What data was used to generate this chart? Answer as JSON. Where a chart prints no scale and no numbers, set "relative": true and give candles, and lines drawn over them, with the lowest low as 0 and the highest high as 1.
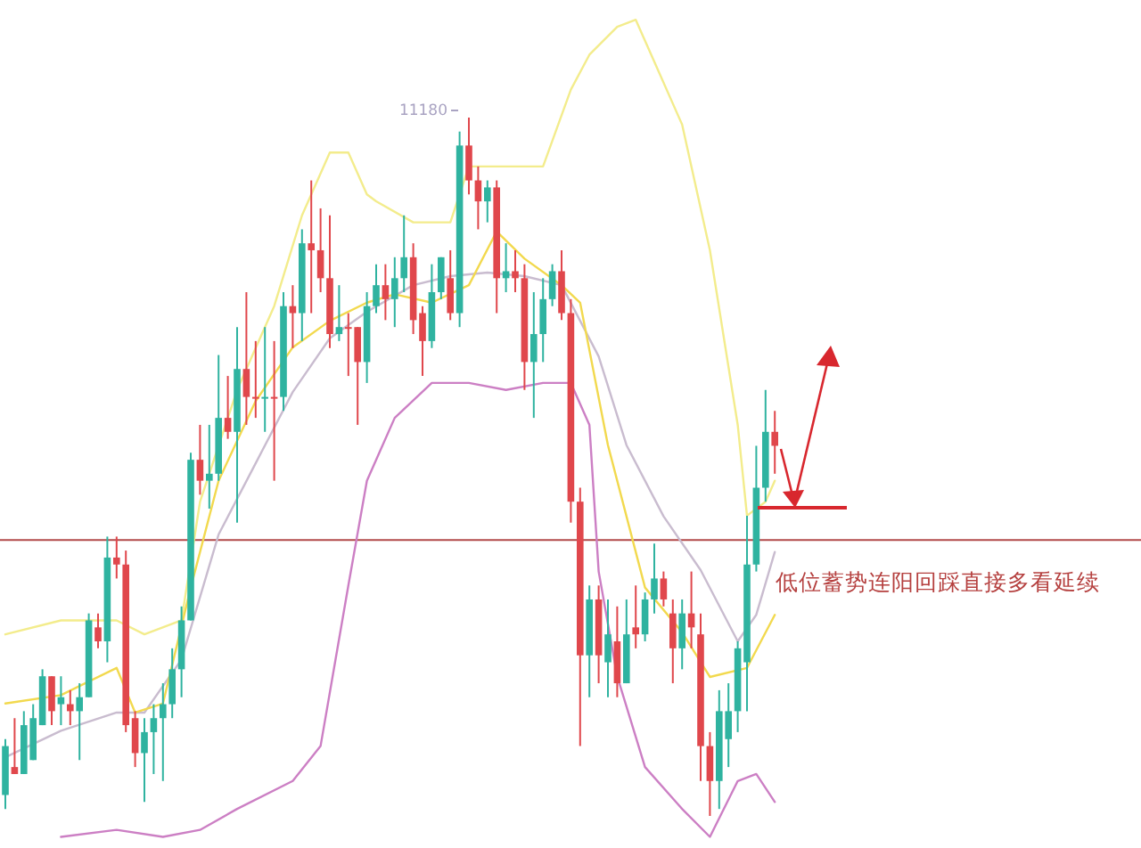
{
  "chart_data": {
    "type": "candlestick",
    "relative": true,
    "categories": [
      null,
      null,
      null,
      null,
      null,
      null,
      null,
      null,
      null,
      null,
      null,
      null,
      null,
      null,
      null,
      null,
      null,
      null,
      null,
      null,
      null,
      null,
      null,
      null,
      null,
      null,
      null,
      null,
      null,
      null,
      null,
      null,
      null,
      null,
      null,
      null,
      null,
      null,
      null,
      null,
      null,
      null,
      null,
      null,
      null,
      null,
      null,
      null,
      null,
      null,
      null,
      null,
      null,
      null,
      null,
      null,
      null,
      null,
      null,
      null,
      null,
      null,
      null,
      null,
      null,
      null,
      null,
      null,
      null,
      null,
      null,
      null,
      null,
      null,
      null,
      null,
      null,
      null,
      null,
      null,
      null,
      null,
      null,
      null
    ],
    "ohlc": [
      [
        0.03,
        0.11,
        0.01,
        0.1
      ],
      [
        0.07,
        0.14,
        0.06,
        0.06
      ],
      [
        0.06,
        0.15,
        0.06,
        0.13
      ],
      [
        0.08,
        0.16,
        0.08,
        0.14
      ],
      [
        0.13,
        0.21,
        0.13,
        0.2
      ],
      [
        0.2,
        0.2,
        0.13,
        0.15
      ],
      [
        0.16,
        0.2,
        0.13,
        0.17
      ],
      [
        0.16,
        0.18,
        0.13,
        0.15
      ],
      [
        0.15,
        0.19,
        0.08,
        0.17
      ],
      [
        0.17,
        0.29,
        0.17,
        0.28
      ],
      [
        0.27,
        0.29,
        0.24,
        0.25
      ],
      [
        0.25,
        0.4,
        0.22,
        0.37
      ],
      [
        0.37,
        0.4,
        0.34,
        0.36
      ],
      [
        0.36,
        0.38,
        0.12,
        0.13
      ],
      [
        0.14,
        0.15,
        0.07,
        0.09
      ],
      [
        0.09,
        0.14,
        0.02,
        0.12
      ],
      [
        0.12,
        0.16,
        0.06,
        0.14
      ],
      [
        0.14,
        0.19,
        0.05,
        0.16
      ],
      [
        0.16,
        0.24,
        0.14,
        0.21
      ],
      [
        0.21,
        0.3,
        0.17,
        0.28
      ],
      [
        0.28,
        0.52,
        0.28,
        0.51
      ],
      [
        0.51,
        0.56,
        0.46,
        0.48
      ],
      [
        0.48,
        0.56,
        0.44,
        0.49
      ],
      [
        0.49,
        0.66,
        0.48,
        0.57
      ],
      [
        0.57,
        0.63,
        0.54,
        0.55
      ],
      [
        0.55,
        0.7,
        0.42,
        0.64
      ],
      [
        0.64,
        0.75,
        0.56,
        0.6
      ],
      [
        0.6,
        0.68,
        0.57,
        0.6
      ],
      [
        0.6,
        0.7,
        0.55,
        0.6
      ],
      [
        0.6,
        0.68,
        0.48,
        0.6
      ],
      [
        0.6,
        0.75,
        0.58,
        0.73
      ],
      [
        0.73,
        0.76,
        0.67,
        0.72
      ],
      [
        0.72,
        0.84,
        0.68,
        0.82
      ],
      [
        0.82,
        0.91,
        0.72,
        0.81
      ],
      [
        0.81,
        0.87,
        0.75,
        0.77
      ],
      [
        0.77,
        0.86,
        0.67,
        0.69
      ],
      [
        0.69,
        0.76,
        0.68,
        0.7
      ],
      [
        0.7,
        0.72,
        0.63,
        0.7
      ],
      [
        0.7,
        0.7,
        0.56,
        0.65
      ],
      [
        0.65,
        0.75,
        0.62,
        0.73
      ],
      [
        0.73,
        0.79,
        0.72,
        0.76
      ],
      [
        0.76,
        0.79,
        0.71,
        0.74
      ],
      [
        0.74,
        0.8,
        0.7,
        0.77
      ],
      [
        0.77,
        0.86,
        0.75,
        0.8
      ],
      [
        0.8,
        0.82,
        0.69,
        0.71
      ],
      [
        0.72,
        0.73,
        0.63,
        0.68
      ],
      [
        0.68,
        0.79,
        0.67,
        0.75
      ],
      [
        0.75,
        0.8,
        0.74,
        0.8
      ],
      [
        0.77,
        0.81,
        0.71,
        0.72
      ],
      [
        0.72,
        0.98,
        0.7,
        0.96
      ],
      [
        0.96,
        1.0,
        0.89,
        0.91
      ],
      [
        0.91,
        0.93,
        0.84,
        0.88
      ],
      [
        0.88,
        0.91,
        0.85,
        0.9
      ],
      [
        0.9,
        0.91,
        0.72,
        0.77
      ],
      [
        0.77,
        0.82,
        0.75,
        0.78
      ],
      [
        0.78,
        0.81,
        0.75,
        0.77
      ],
      [
        0.77,
        0.79,
        0.61,
        0.65
      ],
      [
        0.65,
        0.75,
        0.57,
        0.69
      ],
      [
        0.69,
        0.77,
        0.65,
        0.74
      ],
      [
        0.74,
        0.79,
        0.73,
        0.78
      ],
      [
        0.78,
        0.81,
        0.71,
        0.72
      ],
      [
        0.72,
        0.74,
        0.42,
        0.45
      ],
      [
        0.45,
        0.47,
        0.1,
        0.23
      ],
      [
        0.23,
        0.33,
        0.17,
        0.31
      ],
      [
        0.31,
        0.33,
        0.19,
        0.23
      ],
      [
        0.22,
        0.31,
        0.17,
        0.26
      ],
      [
        0.25,
        0.3,
        0.17,
        0.19
      ],
      [
        0.19,
        0.31,
        0.19,
        0.26
      ],
      [
        0.27,
        0.33,
        0.24,
        0.26
      ],
      [
        0.26,
        0.32,
        0.25,
        0.31
      ],
      [
        0.31,
        0.39,
        0.29,
        0.34
      ],
      [
        0.34,
        0.35,
        0.3,
        0.31
      ],
      [
        0.29,
        0.31,
        0.19,
        0.24
      ],
      [
        0.24,
        0.31,
        0.21,
        0.29
      ],
      [
        0.29,
        0.35,
        0.24,
        0.27
      ],
      [
        0.26,
        0.29,
        0.05,
        0.1
      ],
      [
        0.1,
        0.12,
        0.0,
        0.05
      ],
      [
        0.05,
        0.18,
        0.01,
        0.15
      ],
      [
        0.11,
        0.19,
        0.07,
        0.15
      ],
      [
        0.15,
        0.25,
        0.12,
        0.24
      ],
      [
        0.22,
        0.43,
        0.15,
        0.36
      ],
      [
        0.36,
        0.53,
        0.35,
        0.47
      ],
      [
        0.47,
        0.61,
        0.45,
        0.55
      ],
      [
        0.55,
        0.58,
        0.49,
        0.53
      ]
    ],
    "colors": [
      "#2fb3a0",
      "#e0474c",
      "#2fb3a0",
      "#2fb3a0",
      "#2fb3a0",
      "#e0474c",
      "#2fb3a0",
      "#e0474c",
      "#2fb3a0",
      "#2fb3a0",
      "#e0474c",
      "#2fb3a0",
      "#e0474c",
      "#e0474c",
      "#e0474c",
      "#2fb3a0",
      "#2fb3a0",
      "#2fb3a0",
      "#2fb3a0",
      "#2fb3a0",
      "#2fb3a0",
      "#e0474c",
      "#2fb3a0",
      "#2fb3a0",
      "#e0474c",
      "#2fb3a0",
      "#e0474c",
      "#e0474c",
      "#2fb3a0",
      "#e0474c",
      "#2fb3a0",
      "#e0474c",
      "#2fb3a0",
      "#e0474c",
      "#e0474c",
      "#e0474c",
      "#2fb3a0",
      "#e0474c",
      "#e0474c",
      "#2fb3a0",
      "#2fb3a0",
      "#e0474c",
      "#2fb3a0",
      "#2fb3a0",
      "#e0474c",
      "#e0474c",
      "#2fb3a0",
      "#2fb3a0",
      "#e0474c",
      "#2fb3a0",
      "#e0474c",
      "#e0474c",
      "#2fb3a0",
      "#e0474c",
      "#2fb3a0",
      "#e0474c",
      "#e0474c",
      "#2fb3a0",
      "#2fb3a0",
      "#2fb3a0",
      "#e0474c",
      "#e0474c",
      "#e0474c",
      "#2fb3a0",
      "#e0474c",
      "#2fb3a0",
      "#e0474c",
      "#2fb3a0",
      "#e0474c",
      "#2fb3a0",
      "#2fb3a0",
      "#e0474c",
      "#e0474c",
      "#2fb3a0",
      "#e0474c",
      "#e0474c",
      "#e0474c",
      "#2fb3a0",
      "#2fb3a0",
      "#2fb3a0",
      "#2fb3a0",
      "#2fb3a0",
      "#2fb3a0",
      "#e0474c"
    ],
    "series": [
      {
        "type": "line",
        "color": "#f3ec8c",
        "values": [
          0.26,
          null,
          null,
          null,
          null,
          null,
          0.28,
          null,
          null,
          null,
          null,
          null,
          0.28,
          null,
          null,
          0.26,
          null,
          null,
          null,
          0.28,
          null,
          0.45,
          null,
          null,
          null,
          0.61,
          null,
          null,
          null,
          0.73,
          null,
          null,
          0.86,
          null,
          null,
          0.95,
          null,
          0.95,
          null,
          0.89,
          0.88,
          null,
          null,
          null,
          0.85,
          null,
          null,
          null,
          0.85,
          null,
          0.93,
          null,
          null,
          null,
          0.93,
          null,
          null,
          null,
          0.93,
          null,
          null,
          1.04,
          null,
          1.09,
          null,
          null,
          1.13,
          null,
          1.14,
          null,
          1.08,
          null,
          null,
          0.99,
          null,
          null,
          0.81,
          null,
          null,
          0.56,
          0.43,
          null,
          0.45,
          0.48
        ]
      },
      {
        "type": "line",
        "color": "#cc7fc4",
        "values": [
          null,
          null,
          null,
          null,
          null,
          null,
          -0.03,
          null,
          null,
          null,
          null,
          null,
          -0.02,
          null,
          null,
          null,
          null,
          -0.03,
          null,
          null,
          null,
          -0.02,
          null,
          null,
          null,
          0.01,
          null,
          null,
          null,
          null,
          null,
          0.05,
          null,
          null,
          0.1,
          null,
          null,
          0.33,
          null,
          0.48,
          null,
          null,
          0.57,
          null,
          null,
          null,
          0.62,
          null,
          null,
          null,
          0.62,
          null,
          null,
          null,
          0.61,
          null,
          null,
          null,
          0.62,
          null,
          null,
          0.62,
          null,
          0.56,
          0.35,
          null,
          0.2,
          null,
          null,
          0.07,
          null,
          null,
          null,
          0.01,
          null,
          null,
          -0.03,
          null,
          null,
          0.05,
          null,
          0.06,
          null,
          0.02
        ]
      },
      {
        "type": "line",
        "color": "#c9bccf",
        "values": [
          0.084,
          null,
          null,
          null,
          null,
          null,
          0.122,
          null,
          null,
          null,
          null,
          null,
          0.148,
          null,
          null,
          0.148,
          null,
          null,
          null,
          0.224,
          null,
          null,
          null,
          0.403,
          null,
          null,
          null,
          0.505,
          null,
          null,
          null,
          0.607,
          null,
          null,
          null,
          0.684,
          null,
          null,
          null,
          0.722,
          null,
          null,
          null,
          null,
          0.76,
          null,
          null,
          null,
          0.773,
          null,
          null,
          null,
          0.778,
          null,
          null,
          null,
          0.773,
          null,
          null,
          null,
          0.76,
          null,
          null,
          null,
          0.658,
          null,
          null,
          0.531,
          null,
          null,
          null,
          0.429,
          null,
          null,
          null,
          0.352,
          null,
          null,
          null,
          0.25,
          null,
          0.288,
          null,
          0.378
        ]
      },
      {
        "type": "line",
        "color": "#f2d94e",
        "values": [
          0.161,
          null,
          null,
          null,
          null,
          null,
          0.173,
          null,
          null,
          null,
          null,
          null,
          0.212,
          null,
          0.148,
          null,
          null,
          0.161,
          null,
          null,
          0.327,
          null,
          null,
          0.48,
          null,
          null,
          null,
          0.594,
          null,
          null,
          null,
          0.671,
          null,
          null,
          null,
          0.709,
          null,
          null,
          null,
          0.735,
          null,
          null,
          0.747,
          null,
          null,
          null,
          0.735,
          null,
          null,
          null,
          0.76,
          null,
          null,
          0.837,
          null,
          null,
          0.798,
          null,
          null,
          null,
          0.76,
          null,
          0.735,
          null,
          null,
          0.531,
          null,
          null,
          null,
          0.327,
          null,
          null,
          null,
          0.263,
          null,
          null,
          0.199,
          null,
          null,
          null,
          0.212,
          null,
          null,
          0.288
        ]
      }
    ],
    "ref_lines": [
      {
        "axis": "y",
        "value": 0.395,
        "color": "#b24a4a"
      }
    ],
    "annotations": [
      "低位蓄势连阳回踩直接多看延续",
      "11180"
    ]
  }
}
